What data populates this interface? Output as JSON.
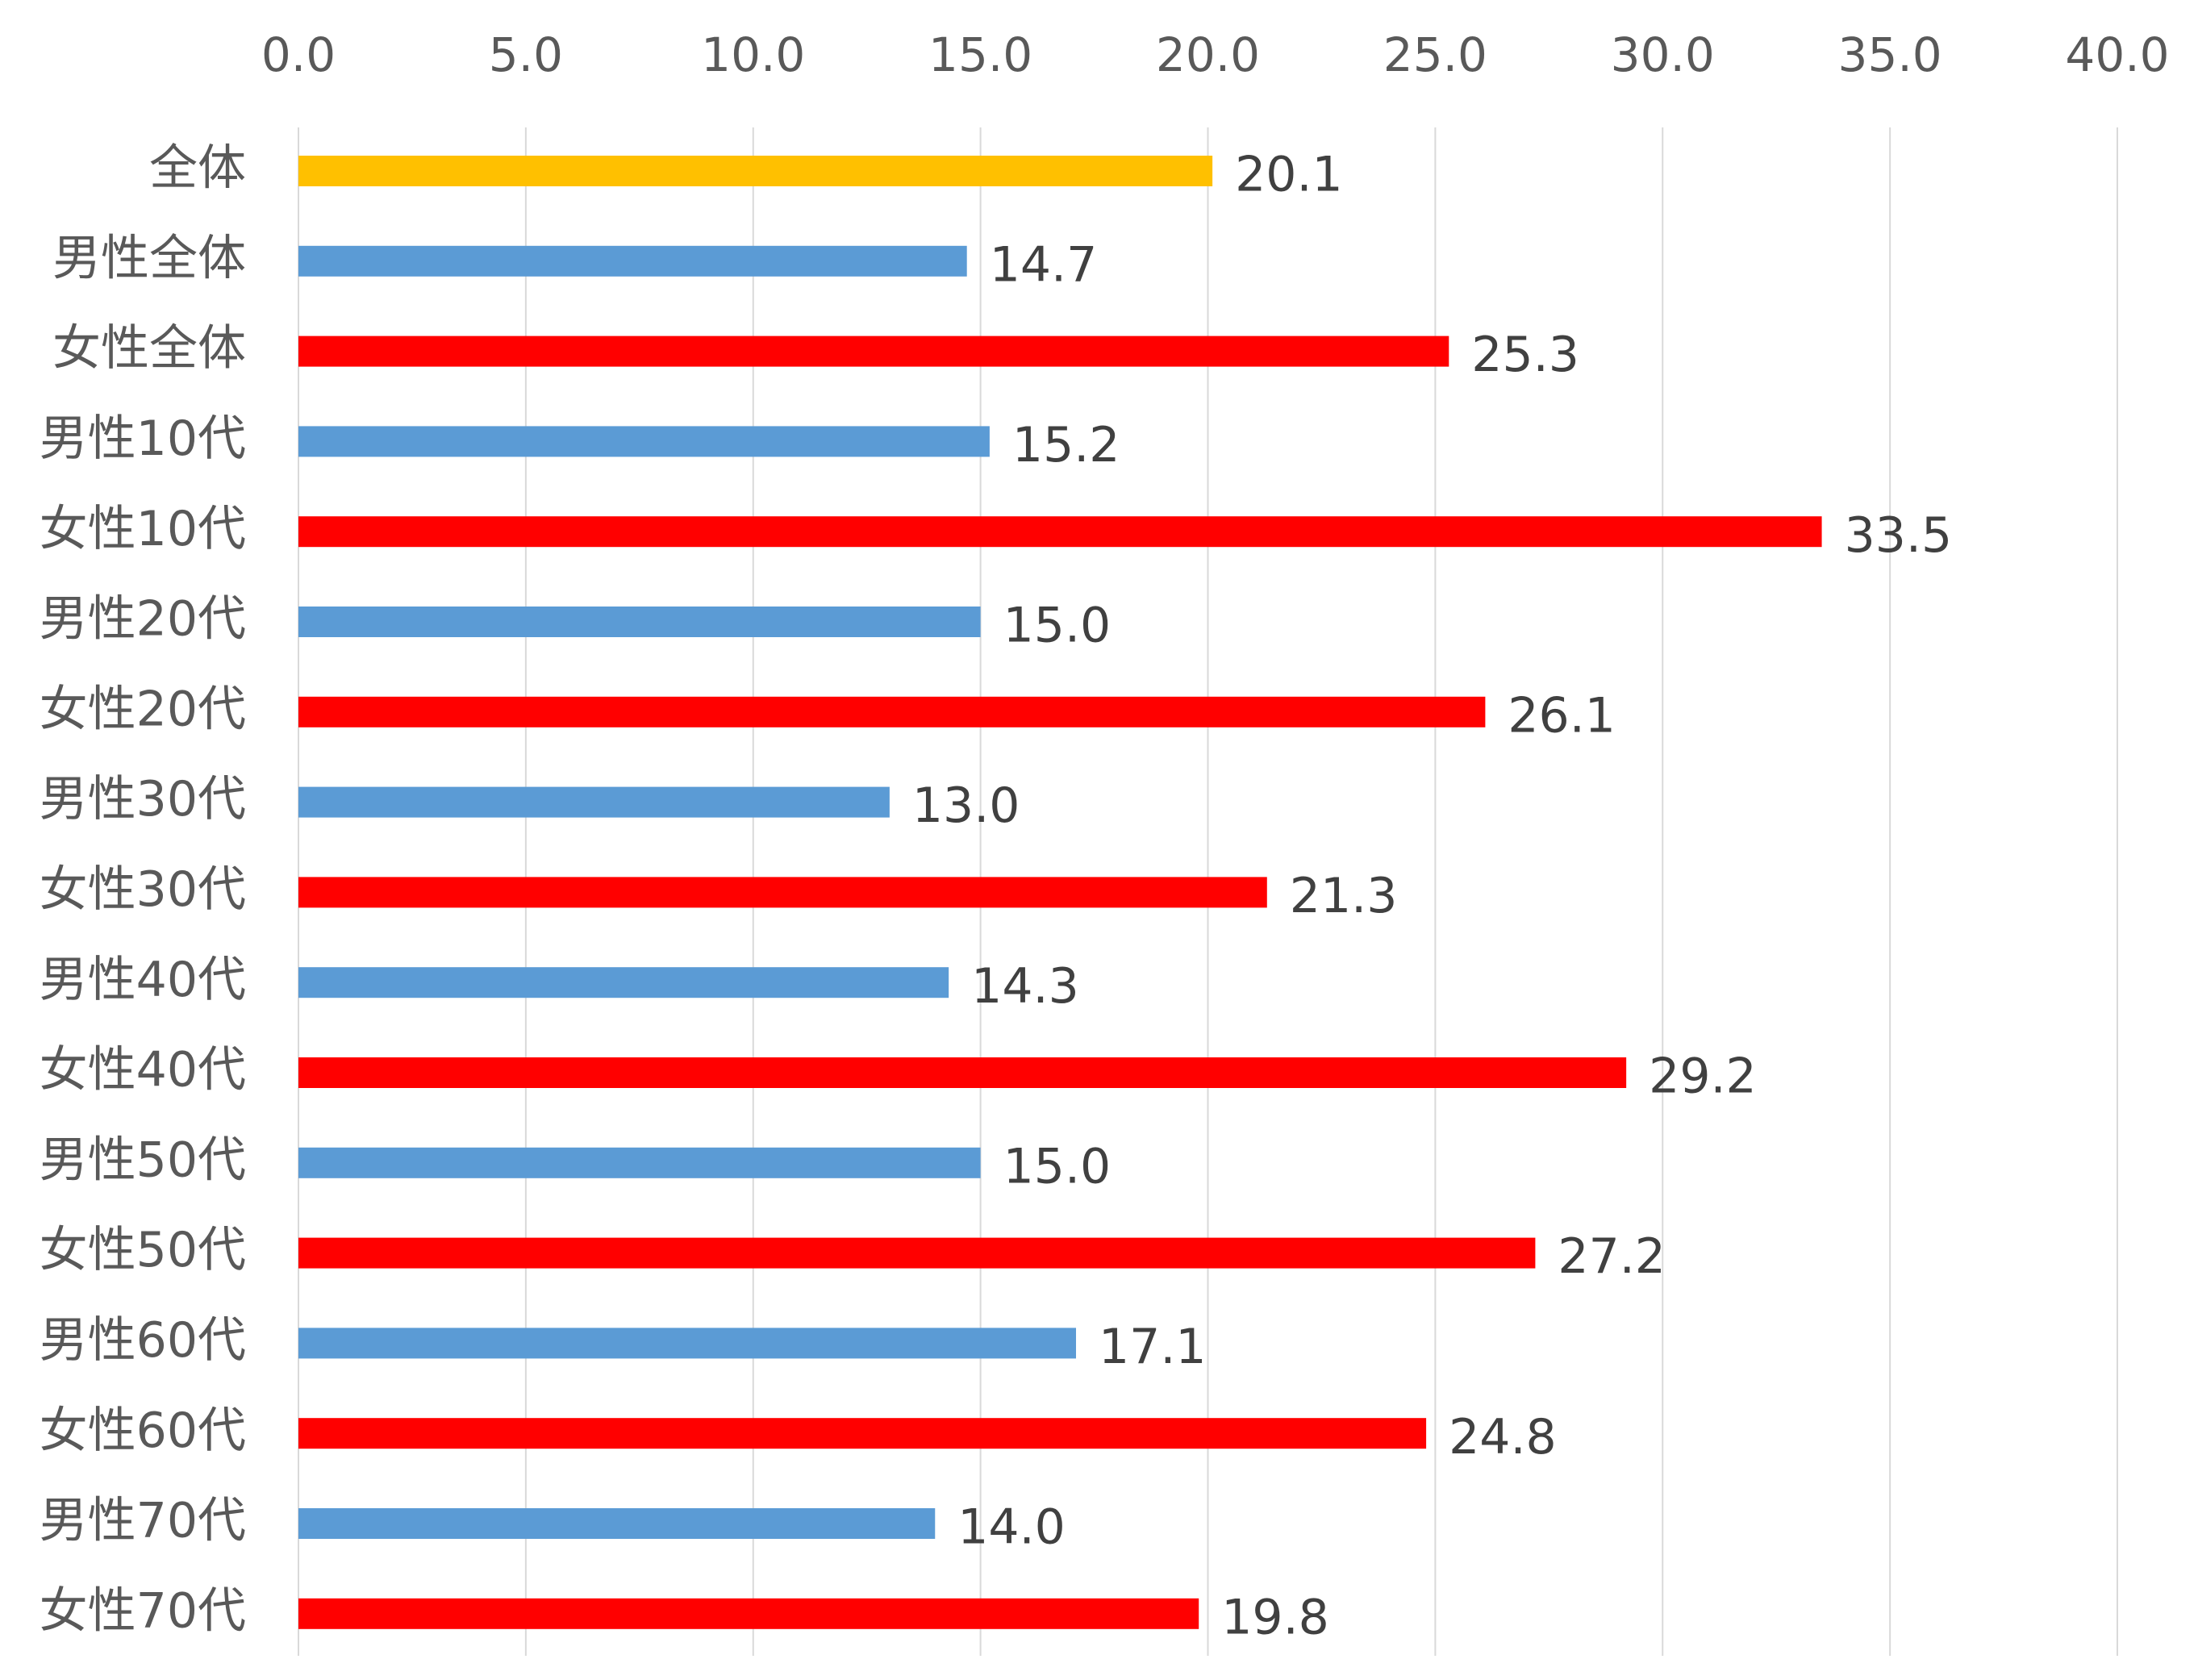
{
  "chart_data": {
    "type": "bar",
    "orientation": "horizontal",
    "title": "",
    "xlabel": "",
    "ylabel": "",
    "xlim": [
      0,
      40
    ],
    "x_ticks": [
      "0.0",
      "5.0",
      "10.0",
      "15.0",
      "20.0",
      "25.0",
      "30.0",
      "35.0",
      "40.0"
    ],
    "axis_position": "top",
    "grid": true,
    "legend": "none",
    "categories": [
      "全体",
      "男性全体",
      "女性全体",
      "男性10代",
      "女性10代",
      "男性20代",
      "女性20代",
      "男性30代",
      "女性30代",
      "男性40代",
      "女性40代",
      "男性50代",
      "女性50代",
      "男性60代",
      "女性60代",
      "男性70代",
      "女性70代"
    ],
    "values": [
      20.1,
      14.7,
      25.3,
      15.2,
      33.5,
      15.0,
      26.1,
      13.0,
      21.3,
      14.3,
      29.2,
      15.0,
      27.2,
      17.1,
      24.8,
      14.0,
      19.8
    ],
    "value_labels": [
      "20.1",
      "14.7",
      "25.3",
      "15.2",
      "33.5",
      "15.0",
      "26.1",
      "13.0",
      "21.3",
      "14.3",
      "29.2",
      "15.0",
      "27.2",
      "17.1",
      "24.8",
      "14.0",
      "19.8"
    ],
    "bar_colors": [
      "#FFC000",
      "#5B9BD5",
      "#FF0000",
      "#5B9BD5",
      "#FF0000",
      "#5B9BD5",
      "#FF0000",
      "#5B9BD5",
      "#FF0000",
      "#5B9BD5",
      "#FF0000",
      "#5B9BD5",
      "#FF0000",
      "#5B9BD5",
      "#FF0000",
      "#5B9BD5",
      "#FF0000"
    ]
  }
}
